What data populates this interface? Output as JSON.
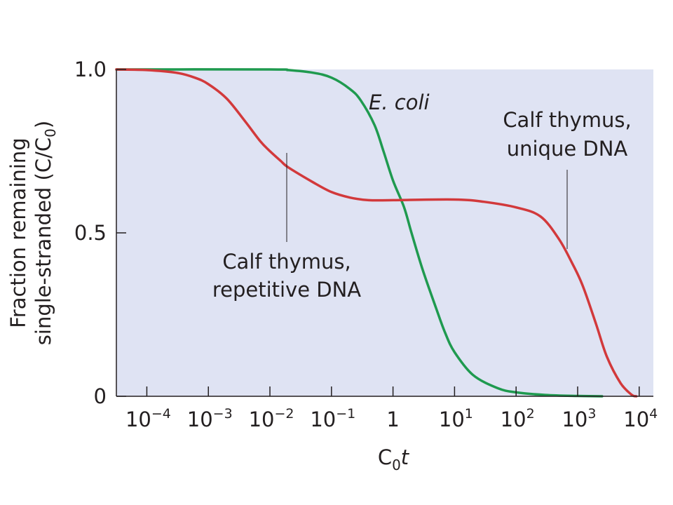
{
  "chart_data": {
    "type": "line",
    "title": "",
    "xlabel": {
      "base": "C",
      "sub": "0",
      "suffix": "t"
    },
    "ylabel": {
      "line1": "Fraction remaining",
      "line2_prefix": "single-stranded (C/C",
      "line2_sub": "0",
      "line2_suffix": ")"
    },
    "x_scale": "log",
    "xlim": [
      3.2e-05,
      17000
    ],
    "ylim": [
      0,
      1.0
    ],
    "grid": false,
    "x_ticks": [
      {
        "value": 0.0001,
        "base": "10",
        "exp": "−4"
      },
      {
        "value": 0.001,
        "base": "10",
        "exp": "−3"
      },
      {
        "value": 0.01,
        "base": "10",
        "exp": "−2"
      },
      {
        "value": 0.1,
        "base": "10",
        "exp": "−1"
      },
      {
        "value": 1,
        "base": "1",
        "exp": ""
      },
      {
        "value": 10,
        "base": "10",
        "exp": "1"
      },
      {
        "value": 100,
        "base": "10",
        "exp": "2"
      },
      {
        "value": 1000,
        "base": "10",
        "exp": "3"
      },
      {
        "value": 10000,
        "base": "10",
        "exp": "4"
      }
    ],
    "y_ticks": [
      {
        "value": 0,
        "label": "0"
      },
      {
        "value": 0.5,
        "label": "0.5"
      },
      {
        "value": 1.0,
        "label": "1.0"
      }
    ],
    "series": [
      {
        "name": "E. coli",
        "color": "#1f9a4f",
        "points": [
          [
            3.2e-05,
            1.0
          ],
          [
            0.01,
            1.0
          ],
          [
            0.02,
            0.998
          ],
          [
            0.05,
            0.99
          ],
          [
            0.1,
            0.975
          ],
          [
            0.2,
            0.94
          ],
          [
            0.3,
            0.905
          ],
          [
            0.5,
            0.83
          ],
          [
            0.7,
            0.75
          ],
          [
            1.0,
            0.66
          ],
          [
            1.5,
            0.58
          ],
          [
            2,
            0.5
          ],
          [
            3,
            0.39
          ],
          [
            5,
            0.27
          ],
          [
            7,
            0.195
          ],
          [
            10,
            0.135
          ],
          [
            20,
            0.065
          ],
          [
            50,
            0.025
          ],
          [
            100,
            0.012
          ],
          [
            300,
            0.004
          ],
          [
            1000,
            0.001
          ],
          [
            2500,
            0.0
          ]
        ]
      },
      {
        "name": "Calf thymus",
        "color": "#d2393b",
        "points": [
          [
            3.2e-05,
            1.0
          ],
          [
            0.0001,
            0.998
          ],
          [
            0.0003,
            0.99
          ],
          [
            0.0006,
            0.975
          ],
          [
            0.001,
            0.955
          ],
          [
            0.002,
            0.91
          ],
          [
            0.004,
            0.84
          ],
          [
            0.007,
            0.78
          ],
          [
            0.01,
            0.75
          ],
          [
            0.015,
            0.72
          ],
          [
            0.02,
            0.7
          ],
          [
            0.05,
            0.655
          ],
          [
            0.1,
            0.625
          ],
          [
            0.2,
            0.608
          ],
          [
            0.4,
            0.6
          ],
          [
            1,
            0.6
          ],
          [
            10,
            0.602
          ],
          [
            30,
            0.595
          ],
          [
            100,
            0.578
          ],
          [
            250,
            0.55
          ],
          [
            500,
            0.48
          ],
          [
            800,
            0.41
          ],
          [
            1200,
            0.34
          ],
          [
            2000,
            0.22
          ],
          [
            3000,
            0.12
          ],
          [
            5000,
            0.04
          ],
          [
            7500,
            0.005
          ],
          [
            9000,
            0.0
          ]
        ]
      }
    ],
    "annotations": [
      {
        "text": "E. coli",
        "italic": true
      },
      {
        "text": "Calf thymus,",
        "text2": "unique DNA",
        "point": [
          800,
          0.44
        ]
      },
      {
        "text": "Calf thymus,",
        "text2": "repetitive DNA",
        "point": [
          0.016,
          0.72
        ]
      }
    ],
    "background_color": "#dfe3f3",
    "axis_color": "#231f20"
  }
}
